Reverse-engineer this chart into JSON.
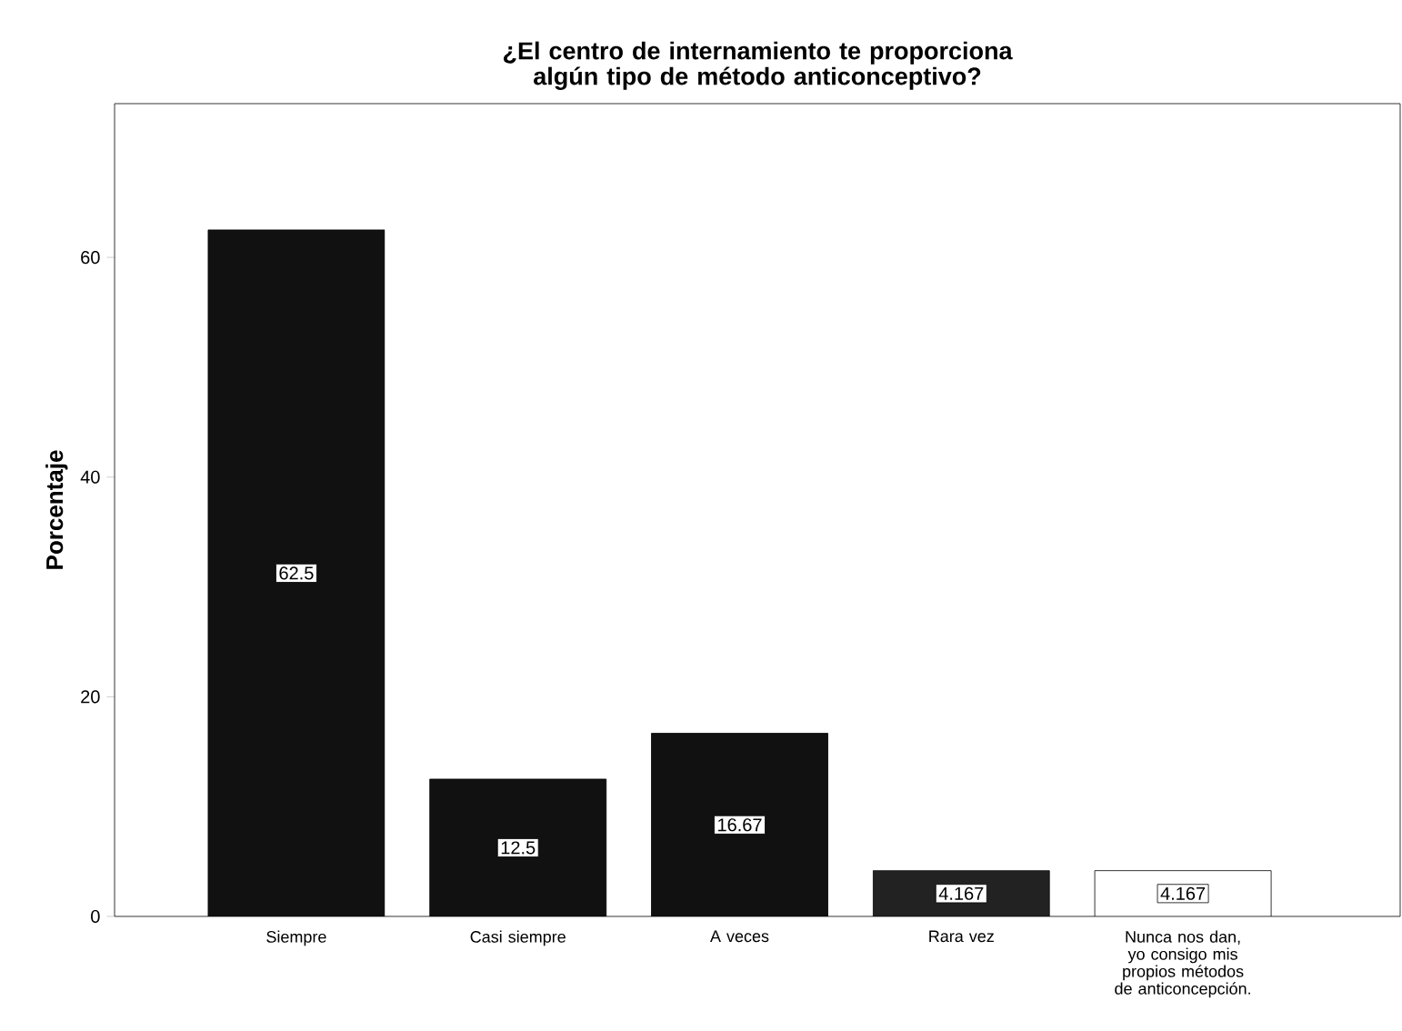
{
  "chart_data": {
    "type": "bar",
    "title": "¿El centro de internamiento te proporciona algún tipo de método anticonceptivo?",
    "ylabel": "Porcentaje",
    "categories": [
      "Siempre",
      "Casi siempre",
      "A veces",
      "Rara vez",
      "Nunca nos dan, yo consigo mis propios métodos de anticoncepción."
    ],
    "values": [
      62.5,
      12.5,
      16.67,
      4.167,
      4.167
    ],
    "colors": [
      "#111111",
      "#111111",
      "#111111",
      "#222222",
      "#ffffff"
    ],
    "ylim": [
      0,
      74
    ],
    "yticks": [
      0,
      20,
      40,
      60
    ],
    "data_labels": true,
    "grid": false
  }
}
